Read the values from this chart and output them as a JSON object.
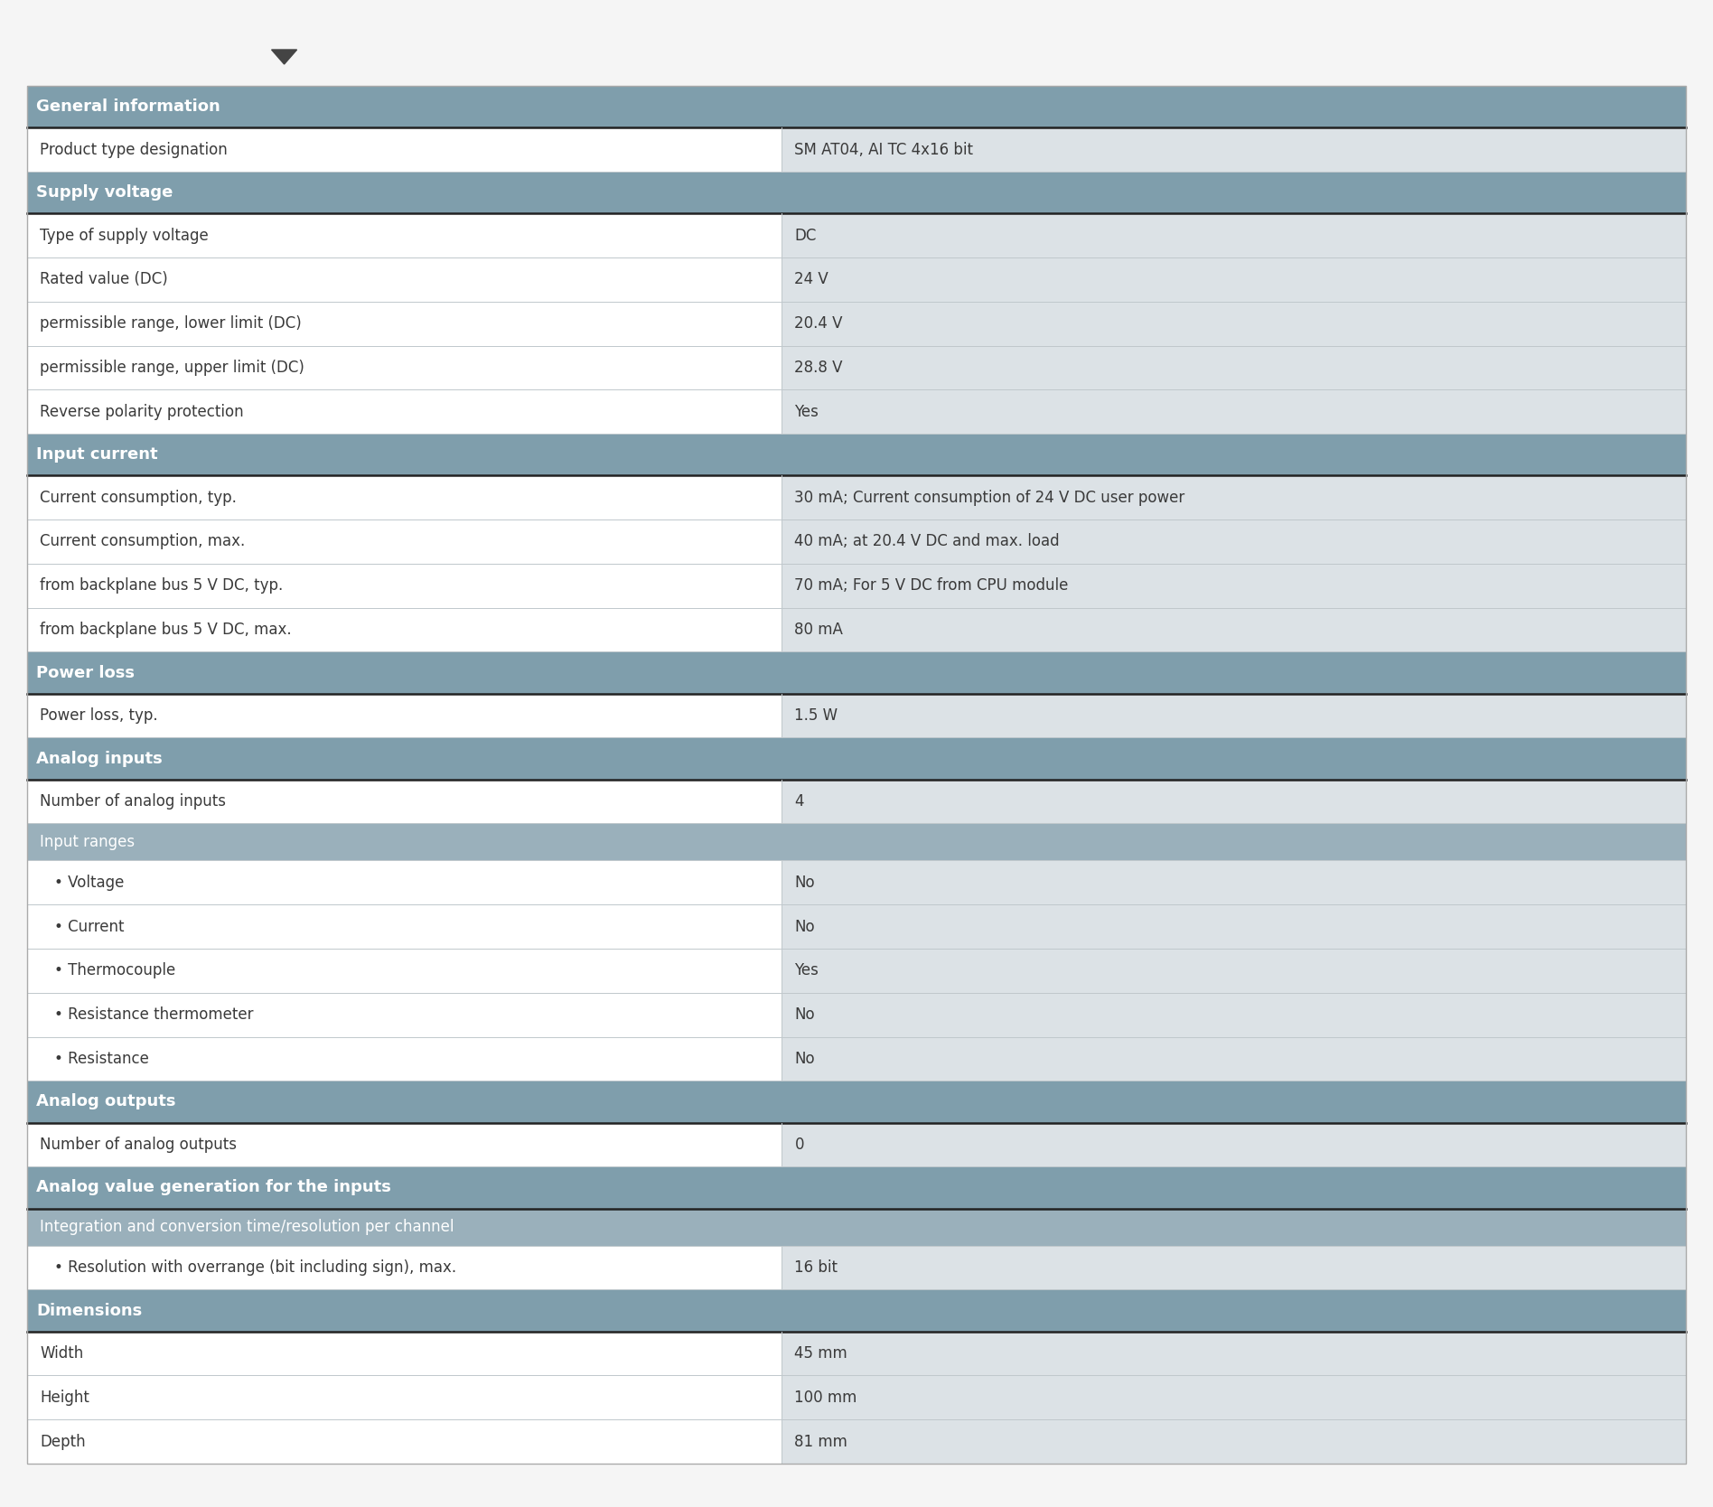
{
  "header_bg": "#7f9eac",
  "subheader_bg": "#9ab0bb",
  "row_bg_light": "#dce2e6",
  "row_bg_white": "#ffffff",
  "header_text_color": "#ffffff",
  "row_text_color": "#3a3a3a",
  "thick_border_color": "#222222",
  "light_border_color": "#c0c8cc",
  "col_split": 0.455,
  "background_color": "#f5f5f5",
  "rows": [
    {
      "type": "section",
      "label": "General information"
    },
    {
      "type": "data",
      "label": "Product type designation",
      "value": "SM AT04, AI TC 4x16 bit"
    },
    {
      "type": "section",
      "label": "Supply voltage"
    },
    {
      "type": "data",
      "label": "Type of supply voltage",
      "value": "DC"
    },
    {
      "type": "data",
      "label": "Rated value (DC)",
      "value": "24 V"
    },
    {
      "type": "data",
      "label": "permissible range, lower limit (DC)",
      "value": "20.4 V"
    },
    {
      "type": "data",
      "label": "permissible range, upper limit (DC)",
      "value": "28.8 V"
    },
    {
      "type": "data",
      "label": "Reverse polarity protection",
      "value": "Yes"
    },
    {
      "type": "section",
      "label": "Input current"
    },
    {
      "type": "data",
      "label": "Current consumption, typ.",
      "value": "30 mA; Current consumption of 24 V DC user power"
    },
    {
      "type": "data",
      "label": "Current consumption, max.",
      "value": "40 mA; at 20.4 V DC and max. load"
    },
    {
      "type": "data",
      "label": "from backplane bus 5 V DC, typ.",
      "value": "70 mA; For 5 V DC from CPU module"
    },
    {
      "type": "data",
      "label": "from backplane bus 5 V DC, max.",
      "value": "80 mA"
    },
    {
      "type": "section",
      "label": "Power loss"
    },
    {
      "type": "data",
      "label": "Power loss, typ.",
      "value": "1.5 W"
    },
    {
      "type": "section",
      "label": "Analog inputs"
    },
    {
      "type": "data",
      "label": "Number of analog inputs",
      "value": "4"
    },
    {
      "type": "subheader",
      "label": "Input ranges"
    },
    {
      "type": "data",
      "label": "• Voltage",
      "value": "No",
      "indent": true
    },
    {
      "type": "data",
      "label": "• Current",
      "value": "No",
      "indent": true
    },
    {
      "type": "data",
      "label": "• Thermocouple",
      "value": "Yes",
      "indent": true
    },
    {
      "type": "data",
      "label": "• Resistance thermometer",
      "value": "No",
      "indent": true
    },
    {
      "type": "data",
      "label": "• Resistance",
      "value": "No",
      "indent": true
    },
    {
      "type": "section",
      "label": "Analog outputs"
    },
    {
      "type": "data",
      "label": "Number of analog outputs",
      "value": "0"
    },
    {
      "type": "section",
      "label": "Analog value generation for the inputs"
    },
    {
      "type": "subheader",
      "label": "Integration and conversion time/resolution per channel"
    },
    {
      "type": "data",
      "label": "• Resolution with overrange (bit including sign), max.",
      "value": "16 bit",
      "indent": true
    },
    {
      "type": "section",
      "label": "Dimensions"
    },
    {
      "type": "data",
      "label": "Width",
      "value": "45 mm"
    },
    {
      "type": "data",
      "label": "Height",
      "value": "100 mm"
    },
    {
      "type": "data",
      "label": "Depth",
      "value": "81 mm"
    }
  ]
}
